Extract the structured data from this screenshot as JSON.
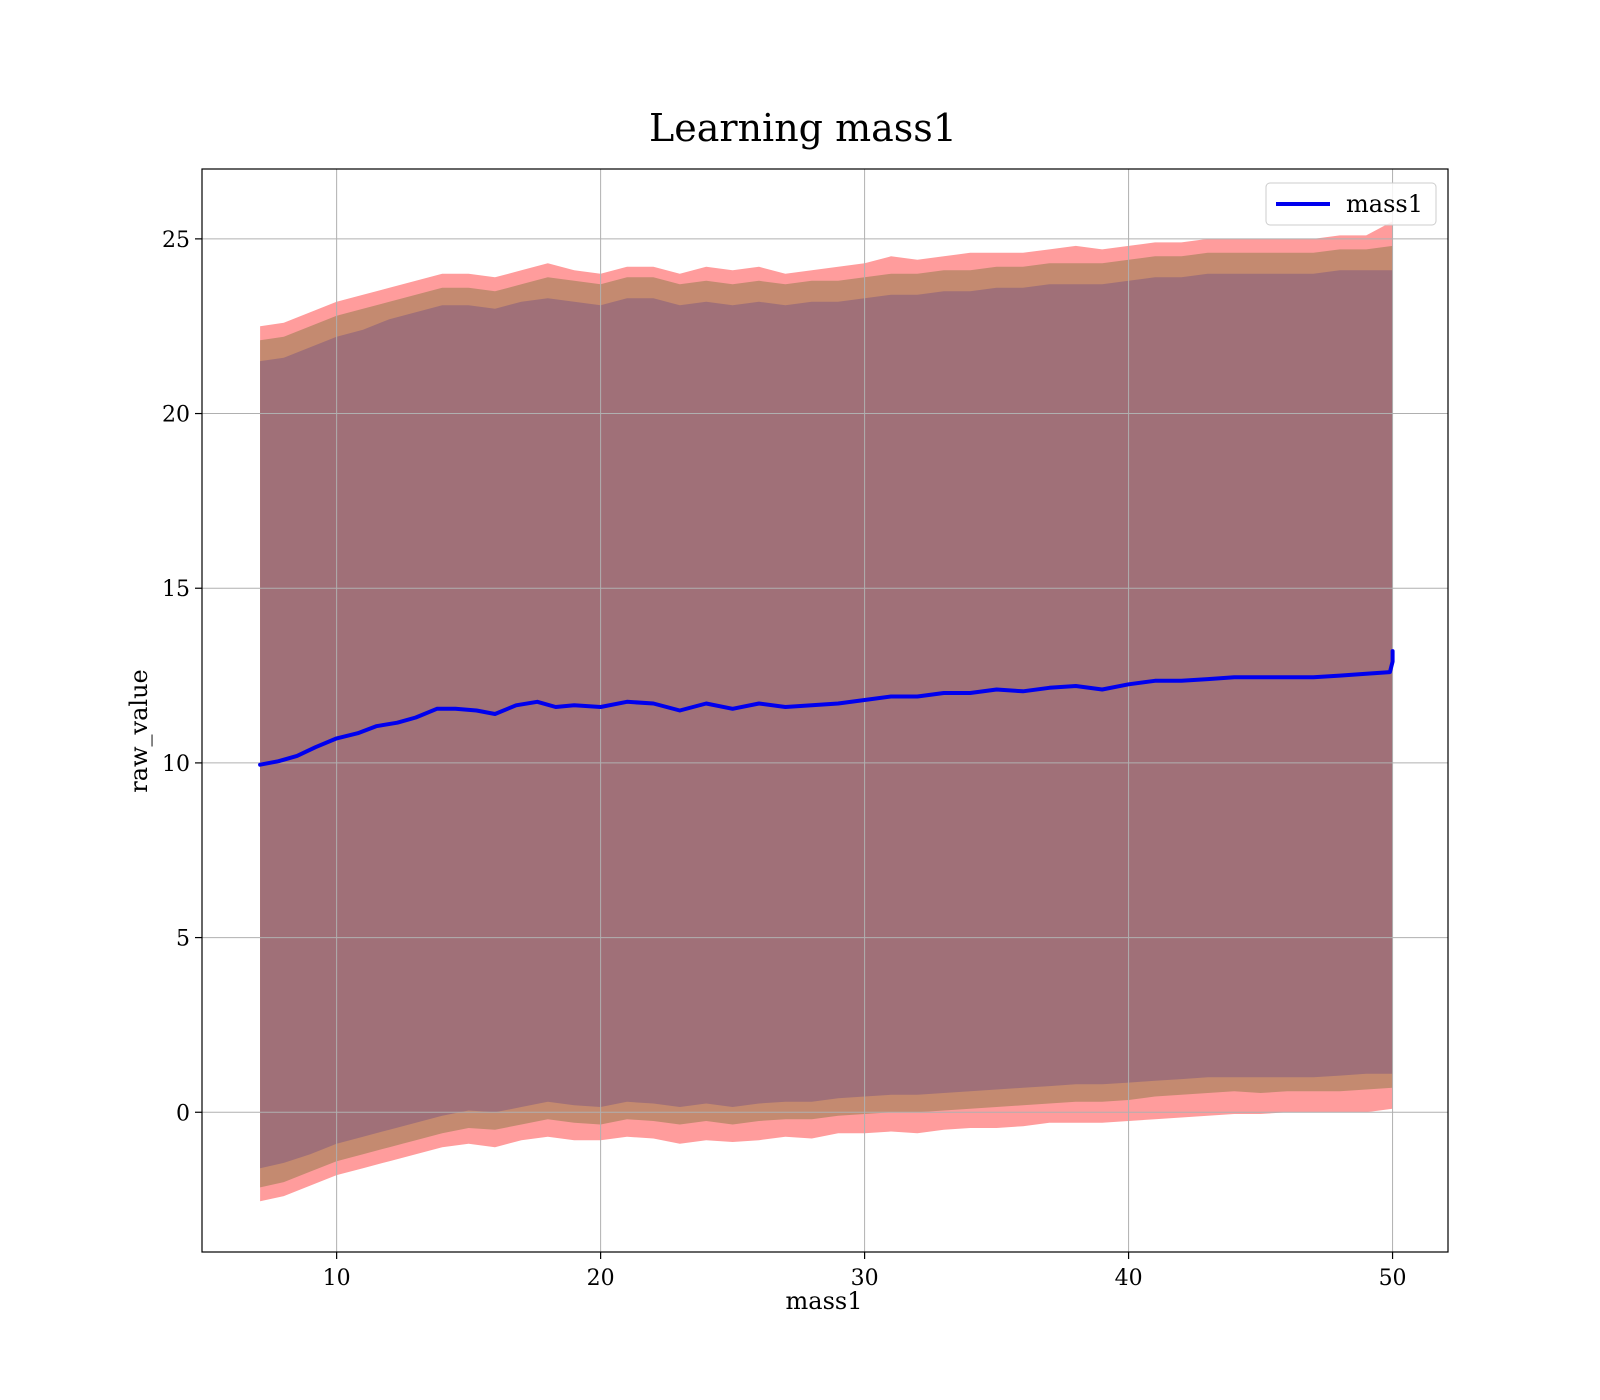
{
  "colors": {
    "line": "#0000ee",
    "outer_band": "#ff9c9c",
    "middle_band": "#c48a70",
    "inner_band": "#a07078",
    "grid": "#b0b0b0",
    "axes": "#000000"
  },
  "chart_data": {
    "type": "area",
    "title": "Learning mass1",
    "xlabel": "mass1",
    "ylabel": "raw_value",
    "xlim": [
      4.9,
      52.1
    ],
    "ylim": [
      -4.0,
      27.0
    ],
    "xticks": [
      10,
      20,
      30,
      40,
      50
    ],
    "yticks": [
      0,
      5,
      10,
      15,
      20,
      25
    ],
    "grid": true,
    "legend_position": "top-right",
    "series": [
      {
        "name": "mass1",
        "type": "line",
        "x": [
          7.1,
          7.8,
          8.5,
          9.2,
          10.0,
          10.8,
          11.5,
          12.3,
          13.0,
          13.8,
          14.5,
          15.3,
          16.0,
          16.8,
          17.6,
          18.3,
          19.0,
          20.0,
          21.0,
          22.0,
          23.0,
          24.0,
          25.0,
          26.0,
          27.0,
          28.0,
          29.0,
          30.0,
          31.0,
          32.0,
          33.0,
          34.0,
          35.0,
          36.0,
          37.0,
          38.0,
          39.0,
          40.0,
          41.0,
          42.0,
          43.0,
          44.0,
          45.0,
          46.0,
          47.0,
          48.0,
          49.0,
          49.9,
          50.0,
          50.0
        ],
        "y": [
          9.95,
          10.05,
          10.2,
          10.45,
          10.7,
          10.85,
          11.05,
          11.15,
          11.3,
          11.55,
          11.55,
          11.5,
          11.4,
          11.65,
          11.75,
          11.6,
          11.65,
          11.6,
          11.75,
          11.7,
          11.5,
          11.7,
          11.55,
          11.7,
          11.6,
          11.65,
          11.7,
          11.8,
          11.9,
          11.9,
          12.0,
          12.0,
          12.1,
          12.05,
          12.15,
          12.2,
          12.1,
          12.25,
          12.35,
          12.35,
          12.4,
          12.45,
          12.45,
          12.45,
          12.45,
          12.5,
          12.55,
          12.6,
          12.9,
          13.2
        ]
      }
    ],
    "bands": [
      {
        "name": "outer",
        "x": [
          7.1,
          8.0,
          9.0,
          10.0,
          11.0,
          12.0,
          13.0,
          14.0,
          15.0,
          16.0,
          17.0,
          18.0,
          19.0,
          20.0,
          21.0,
          22.0,
          23.0,
          24.0,
          25.0,
          26.0,
          27.0,
          28.0,
          29.0,
          30.0,
          31.0,
          32.0,
          33.0,
          34.0,
          35.0,
          36.0,
          37.0,
          38.0,
          39.0,
          40.0,
          41.0,
          42.0,
          43.0,
          44.0,
          45.0,
          46.0,
          47.0,
          48.0,
          49.0,
          50.0
        ],
        "upper": [
          22.5,
          22.6,
          22.9,
          23.2,
          23.4,
          23.6,
          23.8,
          24.0,
          24.0,
          23.9,
          24.1,
          24.3,
          24.1,
          24.0,
          24.2,
          24.2,
          24.0,
          24.2,
          24.1,
          24.2,
          24.0,
          24.1,
          24.2,
          24.3,
          24.5,
          24.4,
          24.5,
          24.6,
          24.6,
          24.6,
          24.7,
          24.8,
          24.7,
          24.8,
          24.9,
          24.9,
          25.0,
          25.0,
          25.0,
          25.0,
          25.0,
          25.1,
          25.1,
          25.5
        ],
        "lower": [
          -2.55,
          -2.4,
          -2.1,
          -1.8,
          -1.6,
          -1.4,
          -1.2,
          -1.0,
          -0.9,
          -1.0,
          -0.8,
          -0.7,
          -0.8,
          -0.8,
          -0.7,
          -0.75,
          -0.9,
          -0.8,
          -0.85,
          -0.8,
          -0.7,
          -0.75,
          -0.6,
          -0.6,
          -0.55,
          -0.6,
          -0.5,
          -0.45,
          -0.45,
          -0.4,
          -0.3,
          -0.3,
          -0.3,
          -0.25,
          -0.2,
          -0.15,
          -0.1,
          -0.05,
          -0.05,
          0.0,
          0.0,
          0.0,
          0.0,
          0.1
        ]
      },
      {
        "name": "middle",
        "x": [
          7.1,
          8.0,
          9.0,
          10.0,
          11.0,
          12.0,
          13.0,
          14.0,
          15.0,
          16.0,
          17.0,
          18.0,
          19.0,
          20.0,
          21.0,
          22.0,
          23.0,
          24.0,
          25.0,
          26.0,
          27.0,
          28.0,
          29.0,
          30.0,
          31.0,
          32.0,
          33.0,
          34.0,
          35.0,
          36.0,
          37.0,
          38.0,
          39.0,
          40.0,
          41.0,
          42.0,
          43.0,
          44.0,
          45.0,
          46.0,
          47.0,
          48.0,
          49.0,
          50.0
        ],
        "upper": [
          22.1,
          22.2,
          22.5,
          22.8,
          23.0,
          23.2,
          23.4,
          23.6,
          23.6,
          23.5,
          23.7,
          23.9,
          23.8,
          23.7,
          23.9,
          23.9,
          23.7,
          23.8,
          23.7,
          23.8,
          23.7,
          23.8,
          23.8,
          23.9,
          24.0,
          24.0,
          24.1,
          24.1,
          24.2,
          24.2,
          24.3,
          24.3,
          24.3,
          24.4,
          24.5,
          24.5,
          24.6,
          24.6,
          24.6,
          24.6,
          24.6,
          24.7,
          24.7,
          24.8
        ],
        "lower": [
          -2.15,
          -2.0,
          -1.7,
          -1.4,
          -1.2,
          -1.0,
          -0.8,
          -0.6,
          -0.45,
          -0.5,
          -0.35,
          -0.2,
          -0.3,
          -0.35,
          -0.2,
          -0.25,
          -0.35,
          -0.25,
          -0.35,
          -0.25,
          -0.2,
          -0.2,
          -0.1,
          -0.05,
          0.0,
          0.0,
          0.05,
          0.1,
          0.15,
          0.2,
          0.25,
          0.3,
          0.3,
          0.35,
          0.45,
          0.5,
          0.55,
          0.6,
          0.55,
          0.6,
          0.6,
          0.6,
          0.65,
          0.7
        ]
      },
      {
        "name": "inner",
        "x": [
          7.1,
          8.0,
          9.0,
          10.0,
          11.0,
          12.0,
          13.0,
          14.0,
          15.0,
          16.0,
          17.0,
          18.0,
          19.0,
          20.0,
          21.0,
          22.0,
          23.0,
          24.0,
          25.0,
          26.0,
          27.0,
          28.0,
          29.0,
          30.0,
          31.0,
          32.0,
          33.0,
          34.0,
          35.0,
          36.0,
          37.0,
          38.0,
          39.0,
          40.0,
          41.0,
          42.0,
          43.0,
          44.0,
          45.0,
          46.0,
          47.0,
          48.0,
          49.0,
          50.0
        ],
        "upper": [
          21.5,
          21.6,
          21.9,
          22.2,
          22.4,
          22.7,
          22.9,
          23.1,
          23.1,
          23.0,
          23.2,
          23.3,
          23.2,
          23.1,
          23.3,
          23.3,
          23.1,
          23.2,
          23.1,
          23.2,
          23.1,
          23.2,
          23.2,
          23.3,
          23.4,
          23.4,
          23.5,
          23.5,
          23.6,
          23.6,
          23.7,
          23.7,
          23.7,
          23.8,
          23.9,
          23.9,
          24.0,
          24.0,
          24.0,
          24.0,
          24.0,
          24.1,
          24.1,
          24.1
        ],
        "lower": [
          -1.6,
          -1.45,
          -1.2,
          -0.9,
          -0.7,
          -0.5,
          -0.3,
          -0.1,
          0.05,
          0.0,
          0.15,
          0.3,
          0.2,
          0.15,
          0.3,
          0.25,
          0.15,
          0.25,
          0.15,
          0.25,
          0.3,
          0.3,
          0.4,
          0.45,
          0.5,
          0.5,
          0.55,
          0.6,
          0.65,
          0.7,
          0.75,
          0.8,
          0.8,
          0.85,
          0.9,
          0.95,
          1.0,
          1.0,
          1.0,
          1.0,
          1.0,
          1.05,
          1.1,
          1.1
        ]
      }
    ]
  }
}
